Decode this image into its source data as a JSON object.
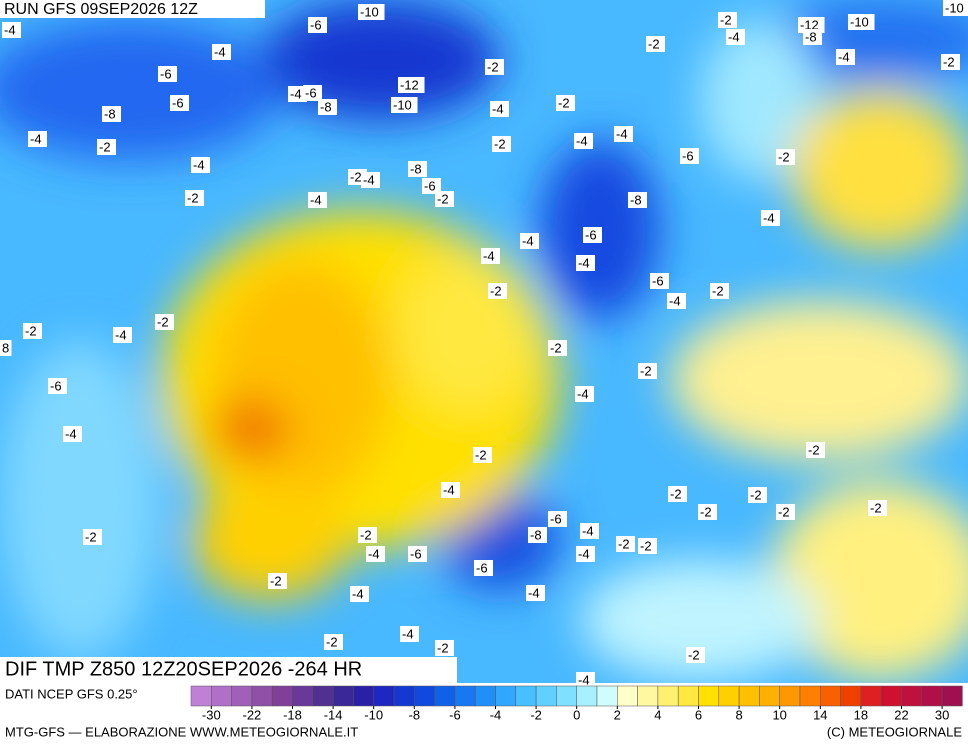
{
  "header": {
    "run": "RUN GFS 09SEP2026 12Z",
    "field": "DIF TMP Z850 12Z20SEP2026 -264 HR"
  },
  "map_labels": [
    "-4",
    "-6",
    "-10",
    "-2",
    "-12",
    "-10",
    "-10",
    "-4",
    "-8",
    "-4",
    "-2",
    "-2",
    "-4",
    "-6",
    "-2",
    "-12",
    "-4",
    "-6",
    "-6",
    "-8",
    "-8",
    "-10",
    "-2",
    "-4",
    "-4",
    "-2",
    "-4",
    "-4",
    "-2",
    "-6",
    "-2",
    "-4",
    "-8",
    "-2",
    "-4",
    "-6",
    "-2",
    "-4",
    "-2",
    "-8",
    "-4",
    "-4",
    "-6",
    "-4",
    "-4",
    "-6",
    "-4",
    "-2",
    "-2",
    "-2",
    "-4",
    "-2",
    "8",
    "-2",
    "-6",
    "-2",
    "-4",
    "-4",
    "-2",
    "-2",
    "-4",
    "-2",
    "-2",
    "-2",
    "-2",
    "-2",
    "-6",
    "-4",
    "-2",
    "-8",
    "-2",
    "-2",
    "-2",
    "-4",
    "-6",
    "-4",
    "-6",
    "-2",
    "-4",
    "-4",
    "-4",
    "-2",
    "-2",
    "-2",
    "-4"
  ],
  "colorbar": {
    "source": "DATI NCEP GFS 0.25°",
    "colors": [
      "#c080d8",
      "#b070c8",
      "#a060b8",
      "#9050a8",
      "#804098",
      "#6a3898",
      "#503090",
      "#3a2898",
      "#2a20a8",
      "#1c28c0",
      "#1438d0",
      "#1048e0",
      "#1060e8",
      "#1878f0",
      "#2090f8",
      "#30a8ff",
      "#48c0ff",
      "#60d0ff",
      "#80e0ff",
      "#a8f0ff",
      "#d0fbff",
      "#ffffc8",
      "#fff8a0",
      "#fff070",
      "#ffe840",
      "#ffe000",
      "#ffd000",
      "#ffc000",
      "#ffb000",
      "#ff9800",
      "#ff8000",
      "#f86000",
      "#f04000",
      "#e02020",
      "#d01030",
      "#c01040",
      "#b01048",
      "#a01050"
    ],
    "ticks": [
      -30,
      -22,
      -18,
      -14,
      -10,
      -8,
      -6,
      -4,
      -2,
      0,
      2,
      4,
      6,
      8,
      10,
      14,
      18,
      22,
      30
    ]
  },
  "footer": {
    "left": "MTG-GFS — ELABORAZIONE WWW.METEOGIORNALE.IT",
    "right": "(C) METEOGIORNALE"
  }
}
